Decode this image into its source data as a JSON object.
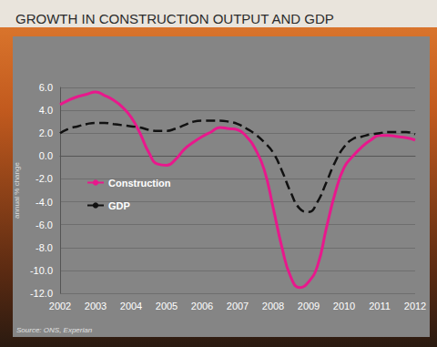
{
  "chart_data": {
    "type": "line",
    "title": "GROWTH IN CONSTRUCTION OUTPUT AND GDP",
    "y_label": "annual % change",
    "annotations": [
      "Source: ONS, Experian"
    ],
    "x": [
      2002,
      2002.25,
      2002.5,
      2002.75,
      2003,
      2003.25,
      2003.5,
      2003.75,
      2004,
      2004.25,
      2004.5,
      2004.75,
      2005,
      2005.25,
      2005.5,
      2005.75,
      2006,
      2006.25,
      2006.5,
      2006.75,
      2007,
      2007.25,
      2007.5,
      2007.75,
      2008,
      2008.25,
      2008.5,
      2008.75,
      2009,
      2009.25,
      2009.5,
      2009.75,
      2010,
      2010.25,
      2010.5,
      2010.75,
      2011,
      2011.25,
      2011.5,
      2011.75,
      2012
    ],
    "series": [
      {
        "name": "Construction",
        "color": "#e8188c",
        "line_style": "solid",
        "marker": "none",
        "values": [
          4.5,
          4.9,
          5.2,
          5.4,
          5.6,
          5.3,
          4.9,
          4.3,
          3.4,
          2.0,
          0.3,
          -0.7,
          -0.8,
          -0.3,
          0.6,
          1.2,
          1.7,
          2.1,
          2.5,
          2.4,
          2.3,
          1.7,
          0.6,
          -1.2,
          -4.5,
          -8.0,
          -10.6,
          -11.5,
          -11.0,
          -9.6,
          -6.3,
          -3.2,
          -1.0,
          0.0,
          0.8,
          1.4,
          1.8,
          1.8,
          1.7,
          1.6,
          1.4
        ]
      },
      {
        "name": "GDP",
        "color": "#111111",
        "line_style": "dashed",
        "marker": "none",
        "values": [
          2.0,
          2.4,
          2.6,
          2.8,
          2.9,
          2.9,
          2.8,
          2.7,
          2.6,
          2.5,
          2.3,
          2.2,
          2.2,
          2.4,
          2.7,
          3.0,
          3.1,
          3.1,
          3.1,
          3.0,
          2.8,
          2.4,
          1.9,
          1.2,
          0.3,
          -1.3,
          -3.2,
          -4.6,
          -4.9,
          -4.0,
          -2.3,
          -0.5,
          0.8,
          1.5,
          1.7,
          1.9,
          2.0,
          2.1,
          2.1,
          2.1,
          1.9
        ]
      }
    ],
    "xlim": [
      2002,
      2012
    ],
    "xticks": [
      2002,
      2003,
      2004,
      2005,
      2006,
      2007,
      2008,
      2009,
      2010,
      2011,
      2012
    ],
    "ylim": [
      -12,
      6
    ],
    "yticks": [
      {
        "value": -12,
        "label": "-12.0"
      },
      {
        "value": -10,
        "label": "-10.0"
      },
      {
        "value": -8,
        "label": "-8.0"
      },
      {
        "value": -6,
        "label": "-6.0"
      },
      {
        "value": -4,
        "label": "-4.0"
      },
      {
        "value": -2,
        "label": "-2.0"
      },
      {
        "value": 0,
        "label": "0.0"
      },
      {
        "value": 2,
        "label": "2.0"
      },
      {
        "value": 4,
        "label": "4.0"
      },
      {
        "value": 6,
        "label": "6.0"
      }
    ],
    "grid": true,
    "legend": "left"
  }
}
